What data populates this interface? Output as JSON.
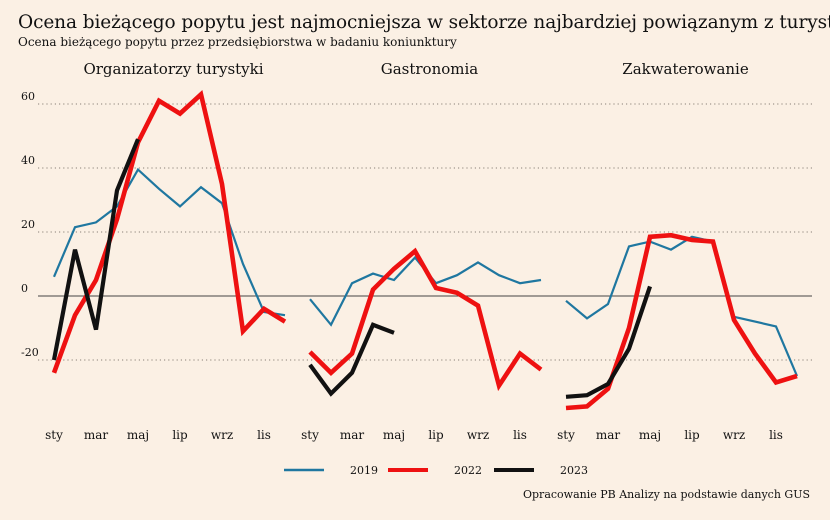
{
  "title": "Ocena bieżącego popytu jest najmocniejsza w sektorze najbardziej powiązanym z turystyką",
  "subtitle": "Ocena bieżącego popytu przez przedsiębiorstwa w badaniu koniunktury",
  "source": "Opracowanie PB Analizy na podstawie danych GUS",
  "colors": {
    "2019": "#1f77a0",
    "2022": "#ee1111",
    "2023": "#111111",
    "background": "#fbf0e4"
  },
  "chart_data": {
    "type": "line",
    "ylim": [
      -40,
      65
    ],
    "yticks": [
      60,
      40,
      20,
      0,
      -20
    ],
    "grid": "horizontal dotted",
    "legend_position": "bottom",
    "x_tick_labels": [
      "sty",
      "mar",
      "maj",
      "lip",
      "wrz",
      "lis"
    ],
    "x_tick_months": [
      1,
      3,
      5,
      7,
      9,
      11
    ],
    "panels": [
      {
        "title": "Organizatorzy turystyki",
        "series": [
          {
            "name": "2019",
            "values": [
              6,
              21.5,
              23,
              28,
              39.5,
              33.5,
              28,
              34,
              29,
              10,
              -5,
              -6
            ]
          },
          {
            "name": "2022",
            "values": [
              -24,
              -6,
              5,
              24,
              48,
              61,
              57,
              63,
              35,
              -11,
              -4,
              -8
            ]
          },
          {
            "name": "2023",
            "values": [
              -20,
              14.5,
              -10.5,
              33,
              49
            ]
          }
        ]
      },
      {
        "title": "Gastronomia",
        "series": [
          {
            "name": "2019",
            "values": [
              -1,
              -9,
              4,
              7,
              5,
              12,
              4,
              6.5,
              10.5,
              6.5,
              4,
              5
            ]
          },
          {
            "name": "2022",
            "values": [
              -17.5,
              -24,
              -18,
              2,
              8.5,
              14,
              2.5,
              1,
              -3,
              -28,
              -18,
              -23
            ]
          },
          {
            "name": "2023",
            "values": [
              -21.5,
              -30.5,
              -24,
              -9,
              -11.5
            ]
          }
        ]
      },
      {
        "title": "Zakwaterowanie",
        "series": [
          {
            "name": "2019",
            "values": [
              -1.5,
              -7,
              -2.5,
              15.5,
              17,
              14.5,
              18.5,
              17,
              -6.5,
              -8,
              -9.5,
              -25
            ]
          },
          {
            "name": "2022",
            "values": [
              -35,
              -34.5,
              -29,
              -10,
              18.5,
              19,
              17.5,
              17,
              -7.5,
              -18,
              -27,
              -25
            ]
          },
          {
            "name": "2023",
            "values": [
              -31.5,
              -31,
              -27.5,
              -16.5,
              3
            ]
          }
        ]
      }
    ]
  }
}
